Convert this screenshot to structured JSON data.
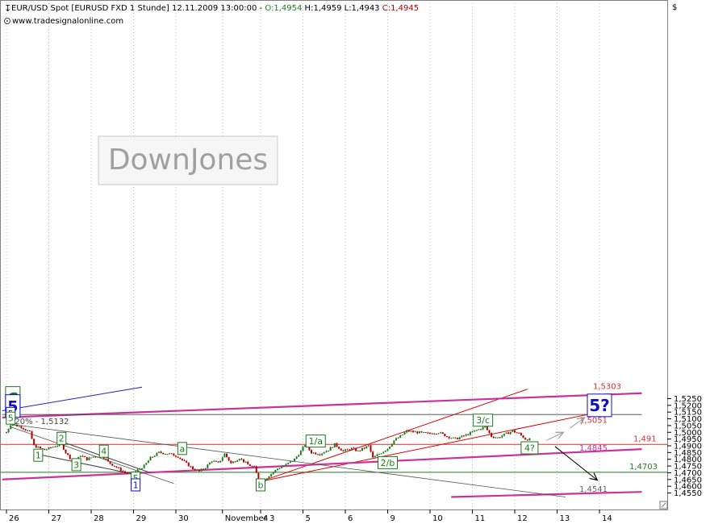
{
  "header": {
    "instrument": "EUR/USD Spot [EURUSD FXD  1 Stunde] 12.11.2009 13:00:00 - ",
    "open": "O:1,4954",
    "high": " H:1,4959",
    "low": " L:1,4943",
    "close": " C:1,4945",
    "website": "www.tradesignalonline.com",
    "currency_symbol": "$"
  },
  "watermark": "DownJones",
  "colors": {
    "bull": "#1f7a1f",
    "bear": "#b00000",
    "magenta": "#cc3399",
    "red_line": "#e00000",
    "wave_green": "#1a7a1a",
    "wave_blue": "#1010c0",
    "grid": "#c0c0c0"
  },
  "icons": {
    "cursor": "arrow-icon",
    "menu": "grip-icon",
    "scroll": "resize-icon"
  },
  "chart_data": {
    "type": "candlestick",
    "title": "EUR/USD Spot [EURUSD FXD  1 Stunde] 12.11.2009 13:00:00",
    "ylim": [
      1.452,
      1.532
    ],
    "y_ticks": [
      "1,4550",
      "1,4600",
      "1,4650",
      "1,4700",
      "1,4750",
      "1,4800",
      "1,4850",
      "1,4900",
      "1,4950",
      "1,5000",
      "1,5050",
      "1,5100",
      "1,5150",
      "1,5200",
      "1,5250"
    ],
    "y_tick_values": [
      1.455,
      1.46,
      1.465,
      1.47,
      1.475,
      1.48,
      1.485,
      1.49,
      1.495,
      1.5,
      1.505,
      1.51,
      1.515,
      1.52,
      1.525
    ],
    "x_ticks": [
      "26",
      "27",
      "28",
      "29",
      "30",
      "November 3",
      "4",
      "5",
      "6",
      "9",
      "10",
      "11",
      "12",
      "13",
      "14"
    ],
    "x_tick_index": [
      0,
      1,
      2,
      3,
      4,
      5.1,
      6,
      7,
      8,
      9,
      10,
      11,
      12,
      13,
      14
    ],
    "price_path": [
      [
        0,
        1.5
      ],
      [
        0.1,
        1.506
      ],
      [
        0.35,
        1.504
      ],
      [
        0.55,
        1.5
      ],
      [
        0.65,
        1.49
      ],
      [
        0.8,
        1.488
      ],
      [
        0.9,
        1.487
      ],
      [
        1.0,
        1.488
      ],
      [
        1.15,
        1.49
      ],
      [
        1.3,
        1.491
      ],
      [
        1.4,
        1.485
      ],
      [
        1.5,
        1.481
      ],
      [
        1.6,
        1.477
      ],
      [
        1.75,
        1.483
      ],
      [
        1.9,
        1.48
      ],
      [
        2.05,
        1.482
      ],
      [
        2.25,
        1.483
      ],
      [
        2.4,
        1.478
      ],
      [
        2.6,
        1.474
      ],
      [
        2.8,
        1.47
      ],
      [
        2.95,
        1.469
      ],
      [
        3.1,
        1.472
      ],
      [
        3.25,
        1.475
      ],
      [
        3.4,
        1.481
      ],
      [
        3.6,
        1.485
      ],
      [
        3.85,
        1.484
      ],
      [
        4.05,
        1.482
      ],
      [
        4.2,
        1.478
      ],
      [
        4.4,
        1.473
      ],
      [
        4.55,
        1.471
      ],
      [
        4.7,
        1.474
      ],
      [
        4.85,
        1.479
      ],
      [
        5.0,
        1.477
      ],
      [
        5.15,
        1.484
      ],
      [
        5.3,
        1.477
      ],
      [
        5.5,
        1.481
      ],
      [
        5.7,
        1.476
      ],
      [
        5.85,
        1.474
      ],
      [
        5.95,
        1.465
      ],
      [
        6.05,
        1.4635
      ],
      [
        6.2,
        1.468
      ],
      [
        6.4,
        1.473
      ],
      [
        6.6,
        1.476
      ],
      [
        6.8,
        1.48
      ],
      [
        6.95,
        1.486
      ],
      [
        7.05,
        1.491
      ],
      [
        7.2,
        1.485
      ],
      [
        7.4,
        1.484
      ],
      [
        7.6,
        1.487
      ],
      [
        7.75,
        1.491
      ],
      [
        7.95,
        1.486
      ],
      [
        8.15,
        1.488
      ],
      [
        8.3,
        1.486
      ],
      [
        8.55,
        1.49
      ],
      [
        8.65,
        1.481
      ],
      [
        8.8,
        1.484
      ],
      [
        9.0,
        1.488
      ],
      [
        9.15,
        1.494
      ],
      [
        9.3,
        1.497
      ],
      [
        9.45,
        1.501
      ],
      [
        9.7,
        1.5
      ],
      [
        9.95,
        1.499
      ],
      [
        10.2,
        1.5
      ],
      [
        10.4,
        1.497
      ],
      [
        10.6,
        1.495
      ],
      [
        10.85,
        1.498
      ],
      [
        11.05,
        1.501
      ],
      [
        11.3,
        1.504
      ],
      [
        11.45,
        1.497
      ],
      [
        11.6,
        1.496
      ],
      [
        11.8,
        1.499
      ],
      [
        11.95,
        1.501
      ],
      [
        12.1,
        1.499
      ],
      [
        12.25,
        1.495
      ],
      [
        12.4,
        1.4945
      ]
    ],
    "horizontal_levels": [
      {
        "label": "1,491",
        "value": 1.491
      },
      {
        "label": "1,4703",
        "value": 1.4703
      }
    ],
    "level_labels": [
      {
        "label": "1,5051",
        "value": 1.5051
      },
      {
        "label": "1,4845",
        "value": 1.4845
      },
      {
        "label": "1,4541",
        "value": 1.4541
      },
      {
        "label": "1,5303",
        "value": 1.5303
      },
      {
        "label": "120% - 1,5132",
        "value": 1.5132
      }
    ],
    "wave_labels": [
      {
        "t": "C",
        "x": 0.15,
        "y": 1.5255,
        "color": "green",
        "size": "big"
      },
      {
        "t": "5",
        "x": 0.15,
        "y": 1.5195,
        "color": "blue",
        "size": "big"
      },
      {
        "t": "5",
        "x": 0.1,
        "y": 1.514,
        "color": "blue",
        "size": "small"
      },
      {
        "t": "5",
        "x": 0.1,
        "y": 1.5105,
        "color": "green",
        "size": "small"
      },
      {
        "t": "5?",
        "x": 14.0,
        "y": 1.52,
        "color": "blue",
        "size": "big"
      },
      {
        "t": "1",
        "x": 0.75,
        "y": 1.483,
        "color": "green",
        "size": "small"
      },
      {
        "t": "2",
        "x": 1.3,
        "y": 1.4955,
        "color": "green",
        "size": "small"
      },
      {
        "t": "3",
        "x": 1.65,
        "y": 1.476,
        "color": "green",
        "size": "small"
      },
      {
        "t": "4",
        "x": 2.3,
        "y": 1.486,
        "color": "green",
        "size": "small"
      },
      {
        "t": "5",
        "x": 3.05,
        "y": 1.466,
        "color": "green",
        "size": "small"
      },
      {
        "t": "1",
        "x": 3.05,
        "y": 1.461,
        "color": "blue",
        "size": "small"
      },
      {
        "t": "a",
        "x": 4.15,
        "y": 1.488,
        "color": "green",
        "size": "small"
      },
      {
        "t": "b",
        "x": 6.0,
        "y": 1.461,
        "color": "green",
        "size": "small"
      },
      {
        "t": "1/a",
        "x": 7.3,
        "y": 1.4935,
        "color": "green",
        "size": "small"
      },
      {
        "t": "2/b",
        "x": 9.0,
        "y": 1.4775,
        "color": "green",
        "size": "small"
      },
      {
        "t": "3/c",
        "x": 11.25,
        "y": 1.509,
        "color": "green",
        "size": "small"
      },
      {
        "t": "4?",
        "x": 12.35,
        "y": 1.4885,
        "color": "green",
        "size": "small"
      }
    ],
    "trendlines": [
      {
        "type": "red",
        "from": [
          6.0,
          1.4635
        ],
        "to": [
          12.3,
          1.532
        ]
      },
      {
        "type": "red",
        "from": [
          6.0,
          1.4635
        ],
        "to": [
          14.0,
          1.515
        ]
      },
      {
        "type": "magenta",
        "from": [
          -0.1,
          1.465
        ],
        "to": [
          15.0,
          1.4875
        ]
      },
      {
        "type": "magenta",
        "from": [
          -0.1,
          1.511
        ],
        "to": [
          15.0,
          1.529
        ]
      },
      {
        "type": "magenta",
        "from": [
          10.5,
          1.452
        ],
        "to": [
          15.0,
          1.4558
        ]
      },
      {
        "type": "black",
        "from": [
          0.1,
          1.506
        ],
        "to": [
          13.2,
          1.452
        ]
      },
      {
        "type": "black",
        "from": [
          0.1,
          1.504
        ],
        "to": [
          3.95,
          1.462
        ]
      },
      {
        "type": "gray",
        "from": [
          0.7,
          1.484
        ],
        "to": [
          3.0,
          1.469
        ]
      },
      {
        "type": "gray",
        "from": [
          1.4,
          1.492
        ],
        "to": [
          3.4,
          1.47
        ]
      },
      {
        "type": "blue",
        "from": [
          -0.1,
          1.516
        ],
        "to": [
          3.2,
          1.5335
        ]
      },
      {
        "type": "gray_h",
        "from": [
          -0.1,
          1.5132
        ],
        "to": [
          15.0,
          1.5132
        ]
      }
    ],
    "arrows": [
      {
        "color": "gray",
        "from": [
          12.75,
          1.494
        ],
        "to": [
          13.15,
          1.5
        ]
      },
      {
        "color": "gray",
        "from": [
          13.3,
          1.503
        ],
        "to": [
          13.65,
          1.511
        ]
      },
      {
        "color": "black",
        "from": [
          12.95,
          1.4895
        ],
        "to": [
          13.95,
          1.4645
        ]
      }
    ]
  }
}
